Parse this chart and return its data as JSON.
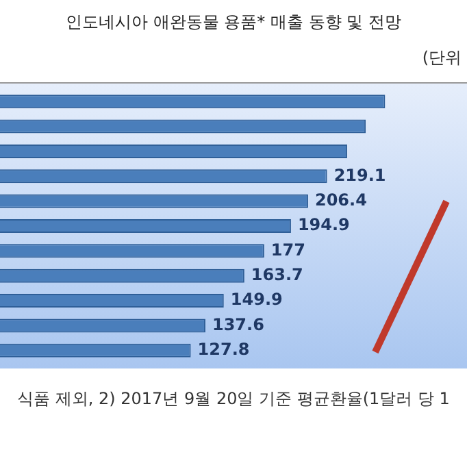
{
  "chart_data": {
    "type": "bar",
    "orientation": "horizontal",
    "title": "인도네시아 애완동물 용품* 매출 동향 및 전망",
    "annotations": [
      "(단위",
      "식품 제외, 2) 2017년 9월 20일 기준 평균환율(1달러 당 1"
    ],
    "categories": [
      null,
      null,
      null,
      null,
      null,
      null,
      null,
      null,
      null,
      null,
      null
    ],
    "values": [
      258,
      245,
      232.6,
      219.1,
      206.4,
      194.9,
      177,
      163.7,
      149.9,
      137.6,
      127.8
    ],
    "value_labels": [
      null,
      null,
      null,
      "219.1",
      "206.4",
      "194.9",
      "177",
      "163.7",
      "149.9",
      "137.6",
      "127.8"
    ],
    "color": "#4a7ebb"
  }
}
